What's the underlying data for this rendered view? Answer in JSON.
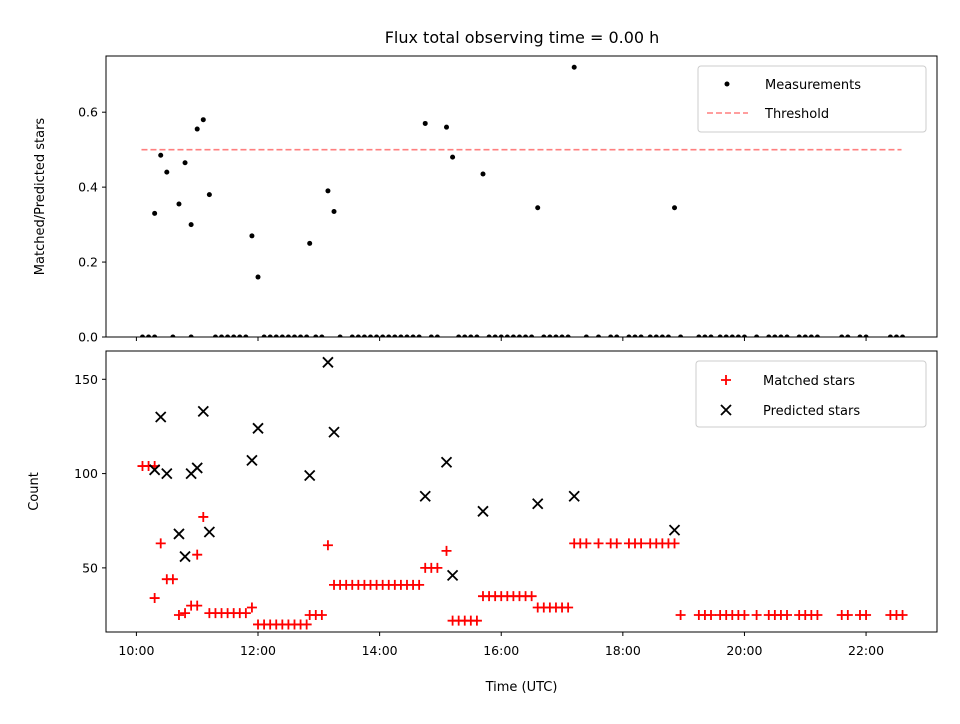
{
  "title": "Flux total observing time = 0.00 h",
  "chart_data": [
    {
      "type": "scatter",
      "ylabel": "Matched/Predicted stars",
      "ylim": [
        0,
        0.75
      ],
      "yticks": [
        "0.0",
        "0.2",
        "0.4",
        "0.6"
      ],
      "legend_location": "top-right",
      "threshold": {
        "name": "Threshold",
        "value": 0.5,
        "x_range": [
          "10:05",
          "22:35"
        ],
        "color": "#ff7f7f"
      },
      "series": [
        {
          "name": "Measurements",
          "color": "#000000",
          "x": [
            "10:18",
            "10:24",
            "10:30",
            "10:42",
            "10:48",
            "10:54",
            "11:00",
            "11:06",
            "11:12",
            "11:54",
            "12:00",
            "12:51",
            "13:09",
            "13:15",
            "14:45",
            "15:06",
            "15:12",
            "15:42",
            "16:36",
            "17:12",
            "18:51"
          ],
          "y": [
            0.33,
            0.485,
            0.44,
            0.355,
            0.465,
            0.3,
            0.555,
            0.58,
            0.38,
            0.27,
            0.16,
            0.25,
            0.39,
            0.335,
            0.57,
            0.56,
            0.48,
            0.435,
            0.345,
            0.72,
            0.345
          ]
        },
        {
          "name": "Measurements",
          "color": "#000000",
          "x": [
            "10:06",
            "10:12",
            "10:18",
            "10:36",
            "10:54",
            "11:18",
            "11:24",
            "11:30",
            "11:36",
            "11:42",
            "11:48",
            "12:06",
            "12:12",
            "12:18",
            "12:24",
            "12:30",
            "12:36",
            "12:42",
            "12:48",
            "12:57",
            "13:03",
            "13:21",
            "13:33",
            "13:39",
            "13:45",
            "13:51",
            "13:57",
            "14:03",
            "14:09",
            "14:15",
            "14:21",
            "14:27",
            "14:33",
            "14:39",
            "14:51",
            "14:57",
            "15:18",
            "15:24",
            "15:30",
            "15:36",
            "15:48",
            "15:54",
            "16:00",
            "16:06",
            "16:12",
            "16:18",
            "16:24",
            "16:30",
            "16:42",
            "16:48",
            "16:54",
            "17:00",
            "17:06",
            "17:24",
            "17:36",
            "17:48",
            "17:54",
            "18:06",
            "18:12",
            "18:18",
            "18:27",
            "18:33",
            "18:39",
            "18:45",
            "18:57",
            "19:15",
            "19:21",
            "19:27",
            "19:36",
            "19:42",
            "19:48",
            "19:54",
            "20:00",
            "20:12",
            "20:24",
            "20:30",
            "20:36",
            "20:42",
            "20:54",
            "21:00",
            "21:06",
            "21:12",
            "21:36",
            "21:42",
            "21:54",
            "22:00",
            "22:24",
            "22:30",
            "22:36"
          ],
          "y": [
            0,
            0,
            0,
            0,
            0,
            0,
            0,
            0,
            0,
            0,
            0,
            0,
            0,
            0,
            0,
            0,
            0,
            0,
            0,
            0,
            0,
            0,
            0,
            0,
            0,
            0,
            0,
            0,
            0,
            0,
            0,
            0,
            0,
            0,
            0,
            0,
            0,
            0,
            0,
            0,
            0,
            0,
            0,
            0,
            0,
            0,
            0,
            0,
            0,
            0,
            0,
            0,
            0,
            0,
            0,
            0,
            0,
            0,
            0,
            0,
            0,
            0,
            0,
            0,
            0,
            0,
            0,
            0,
            0,
            0,
            0,
            0,
            0,
            0,
            0,
            0,
            0,
            0,
            0,
            0,
            0,
            0,
            0,
            0,
            0,
            0,
            0,
            0,
            0
          ]
        }
      ]
    },
    {
      "type": "scatter",
      "xlabel": "Time (UTC)",
      "ylabel": "Count",
      "ylim": [
        16,
        165
      ],
      "yticks": [
        "50",
        "100",
        "150"
      ],
      "xlim": [
        "09:30",
        "23:10"
      ],
      "xticks": [
        "10:00",
        "12:00",
        "14:00",
        "16:00",
        "18:00",
        "20:00",
        "22:00"
      ],
      "legend_location": "top-right",
      "series": [
        {
          "name": "Matched stars",
          "marker": "plus",
          "color": "#ff0000",
          "x": [
            "10:06",
            "10:12",
            "10:18",
            "10:18",
            "10:24",
            "10:30",
            "10:36",
            "10:42",
            "10:48",
            "10:54",
            "11:00",
            "11:00",
            "11:06",
            "11:12",
            "11:18",
            "11:24",
            "11:30",
            "11:36",
            "11:42",
            "11:48",
            "11:54",
            "12:00",
            "12:06",
            "12:12",
            "12:18",
            "12:24",
            "12:30",
            "12:36",
            "12:42",
            "12:48",
            "12:51",
            "12:57",
            "13:03",
            "13:09",
            "13:15",
            "13:21",
            "13:27",
            "13:33",
            "13:39",
            "13:45",
            "13:51",
            "13:57",
            "14:03",
            "14:09",
            "14:15",
            "14:21",
            "14:27",
            "14:33",
            "14:39",
            "14:45",
            "14:51",
            "14:57",
            "15:06",
            "15:12",
            "15:18",
            "15:24",
            "15:30",
            "15:36",
            "15:42",
            "15:48",
            "15:54",
            "16:00",
            "16:06",
            "16:12",
            "16:18",
            "16:24",
            "16:30",
            "16:36",
            "16:42",
            "16:48",
            "16:54",
            "17:00",
            "17:06",
            "17:12",
            "17:18",
            "17:24",
            "17:36",
            "17:48",
            "17:54",
            "18:06",
            "18:12",
            "18:18",
            "18:27",
            "18:33",
            "18:39",
            "18:45",
            "18:51",
            "18:57",
            "19:15",
            "19:21",
            "19:27",
            "19:36",
            "19:42",
            "19:48",
            "19:54",
            "20:00",
            "20:12",
            "20:24",
            "20:30",
            "20:36",
            "20:42",
            "20:54",
            "21:00",
            "21:06",
            "21:12",
            "21:36",
            "21:42",
            "21:54",
            "22:00",
            "22:24",
            "22:30",
            "22:36"
          ],
          "y": [
            104,
            104,
            104,
            34,
            63,
            44,
            44,
            25,
            26,
            30,
            30,
            57,
            77,
            26,
            26,
            26,
            26,
            26,
            26,
            26,
            29,
            20,
            20,
            20,
            20,
            20,
            20,
            20,
            20,
            20,
            25,
            25,
            25,
            62,
            41,
            41,
            41,
            41,
            41,
            41,
            41,
            41,
            41,
            41,
            41,
            41,
            41,
            41,
            41,
            50,
            50,
            50,
            59,
            22,
            22,
            22,
            22,
            22,
            35,
            35,
            35,
            35,
            35,
            35,
            35,
            35,
            35,
            29,
            29,
            29,
            29,
            29,
            29,
            63,
            63,
            63,
            63,
            63,
            63,
            63,
            63,
            63,
            63,
            63,
            63,
            63,
            63,
            25,
            25,
            25,
            25,
            25,
            25,
            25,
            25,
            25,
            25,
            25,
            25,
            25,
            25,
            25,
            25,
            25,
            25,
            25,
            25,
            25,
            25,
            25,
            25,
            25
          ]
        },
        {
          "name": "Predicted stars",
          "marker": "x",
          "color": "#000000",
          "x": [
            "10:18",
            "10:24",
            "10:30",
            "10:42",
            "10:48",
            "10:54",
            "11:00",
            "11:06",
            "11:12",
            "11:54",
            "12:00",
            "12:51",
            "13:09",
            "13:15",
            "14:45",
            "15:06",
            "15:12",
            "15:42",
            "16:36",
            "17:12",
            "18:51"
          ],
          "y": [
            102,
            130,
            100,
            68,
            56,
            100,
            103,
            133,
            69,
            107,
            124,
            99,
            159,
            122,
            88,
            106,
            46,
            80,
            84,
            88,
            70
          ]
        }
      ]
    }
  ]
}
